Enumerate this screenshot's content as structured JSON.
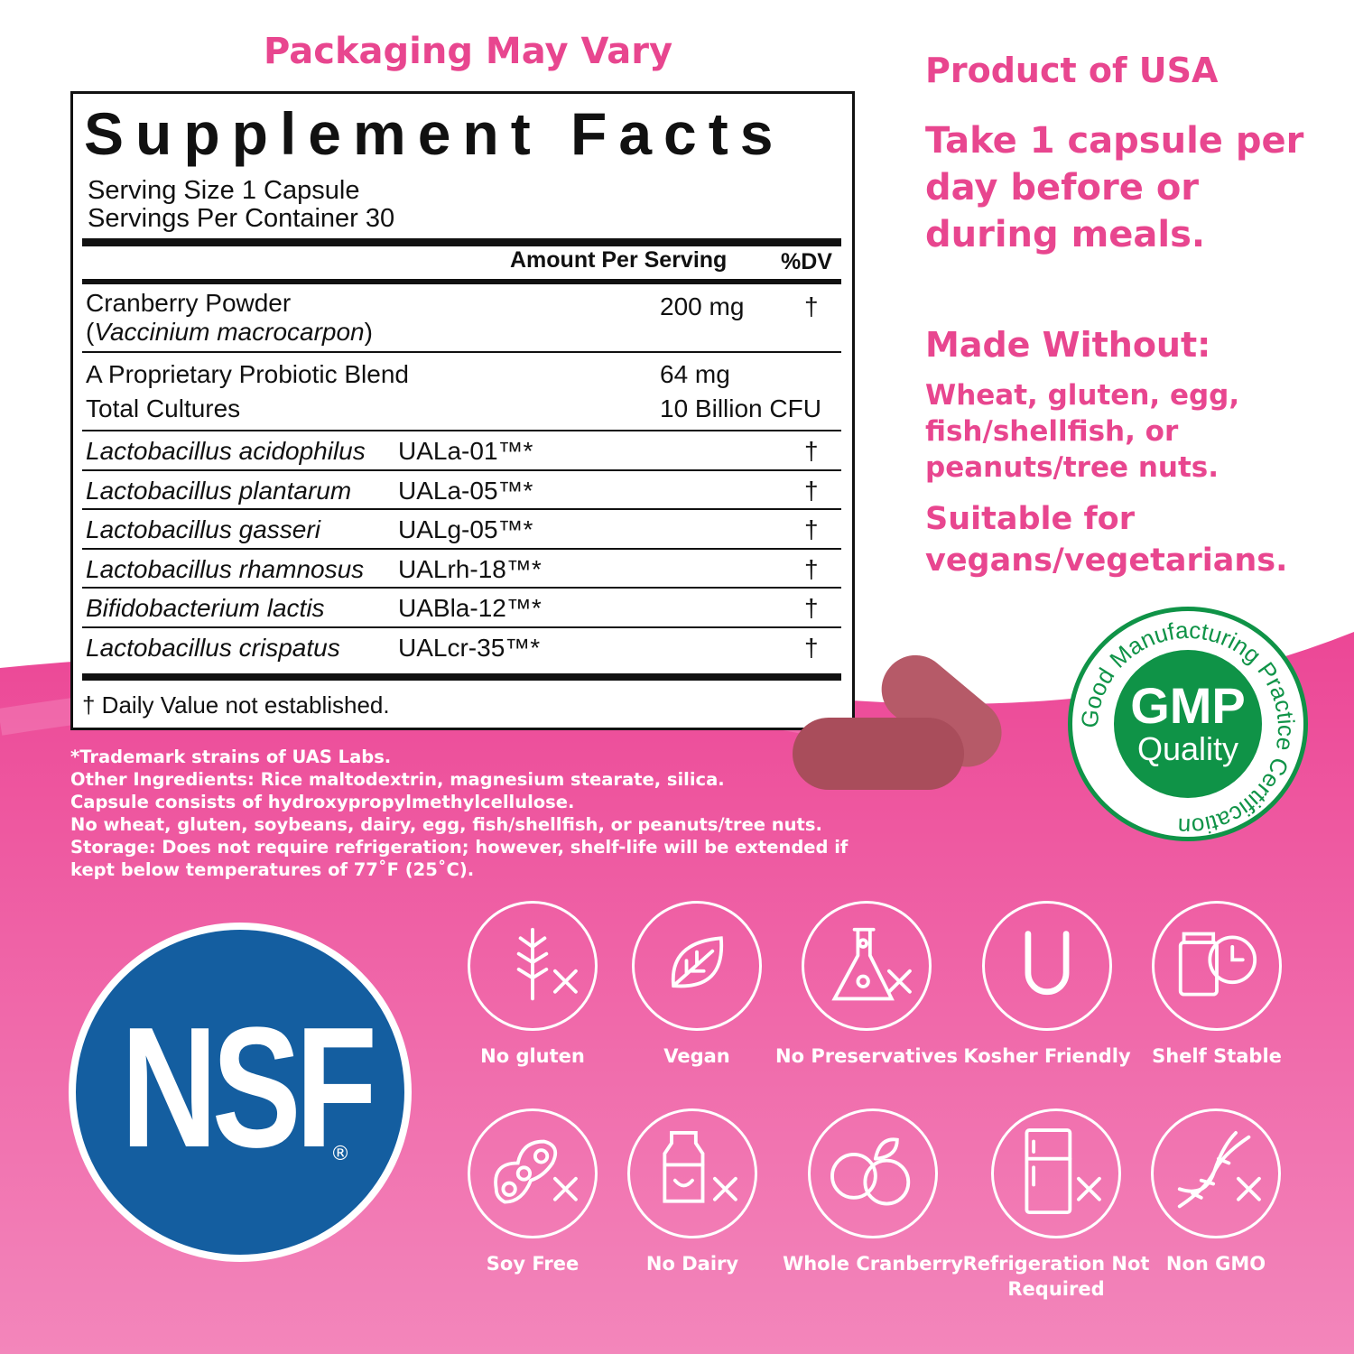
{
  "header": {
    "packaging": "Packaging May Vary"
  },
  "facts": {
    "title": "Supplement Facts",
    "serving_size": "Serving Size 1 Capsule",
    "servings_per_container": "Servings Per Container 30",
    "col_amount": "Amount Per Serving",
    "col_dv": "%DV",
    "rows": [
      {
        "name": "Cranberry Powder",
        "sub": "Vaccinium macrocarpon",
        "amount": "200 mg",
        "dv": "†"
      },
      {
        "name": "A Proprietary Probiotic Blend",
        "name2": "Total Cultures",
        "amount": "64 mg",
        "amount2": "10 Billion CFU"
      }
    ],
    "strains": [
      {
        "name": "Lactobacillus acidophilus",
        "code": "UALa-01™*",
        "dv": "†"
      },
      {
        "name": "Lactobacillus plantarum",
        "code": "UALa-05™*",
        "dv": "†"
      },
      {
        "name": "Lactobacillus gasseri",
        "code": "UALg-05™*",
        "dv": "†"
      },
      {
        "name": "Lactobacillus rhamnosus",
        "code": "UALrh-18™*",
        "dv": "†"
      },
      {
        "name": "Bifidobacterium lactis",
        "code": "UABla-12™*",
        "dv": "†"
      },
      {
        "name": "Lactobacillus crispatus",
        "code": "UALcr-35™*",
        "dv": "†"
      }
    ],
    "footnote": "† Daily Value not established."
  },
  "right": {
    "origin": "Product of USA",
    "directions": "Take 1 capsule per day before or during meals.",
    "made_without_title": "Made Without:",
    "made_without": "Wheat, gluten, egg, fish/shellfish, or peanuts/tree nuts.",
    "suitable": "Suitable for vegans/vegetarians."
  },
  "notes": [
    "*Trademark strains of UAS Labs.",
    "Other Ingredients: Rice maltodextrin, magnesium stearate, silica.",
    "Capsule consists of hydroxypropylmethylcellulose.",
    "No wheat, gluten, soybeans, dairy, egg, fish/shellfish, or peanuts/tree nuts.",
    "Storage: Does not require refrigeration; however, shelf-life will be extended if",
    "kept below temperatures of 77˚F (25˚C)."
  ],
  "gmp": {
    "ring_text": "Good Manufacturing Practice Certification",
    "main": "GMP",
    "sub": "Quality"
  },
  "nsf": {
    "logo": "NSF",
    "reg": "®"
  },
  "badges": [
    {
      "label": "No gluten",
      "icon": "wheat-crossed-icon"
    },
    {
      "label": "Vegan",
      "icon": "leaf-icon"
    },
    {
      "label": "No Preservatives",
      "icon": "flask-crossed-icon"
    },
    {
      "label": "Kosher Friendly",
      "icon": "kosher-u-icon"
    },
    {
      "label": "Shelf Stable",
      "icon": "jar-clock-icon"
    },
    {
      "label": "Soy Free",
      "icon": "soy-crossed-icon"
    },
    {
      "label": "No Dairy",
      "icon": "milk-crossed-icon"
    },
    {
      "label": "Whole Cranberry",
      "icon": "cranberry-icon"
    },
    {
      "label": "Refrigeration Not Required",
      "icon": "fridge-crossed-icon"
    },
    {
      "label": "Non GMO",
      "icon": "dna-crossed-icon"
    }
  ],
  "colors": {
    "accent": "#e8468f",
    "background_pink": "#ee4f9b",
    "nsf_blue": "#145ea0",
    "gmp_green": "#0f9347"
  }
}
